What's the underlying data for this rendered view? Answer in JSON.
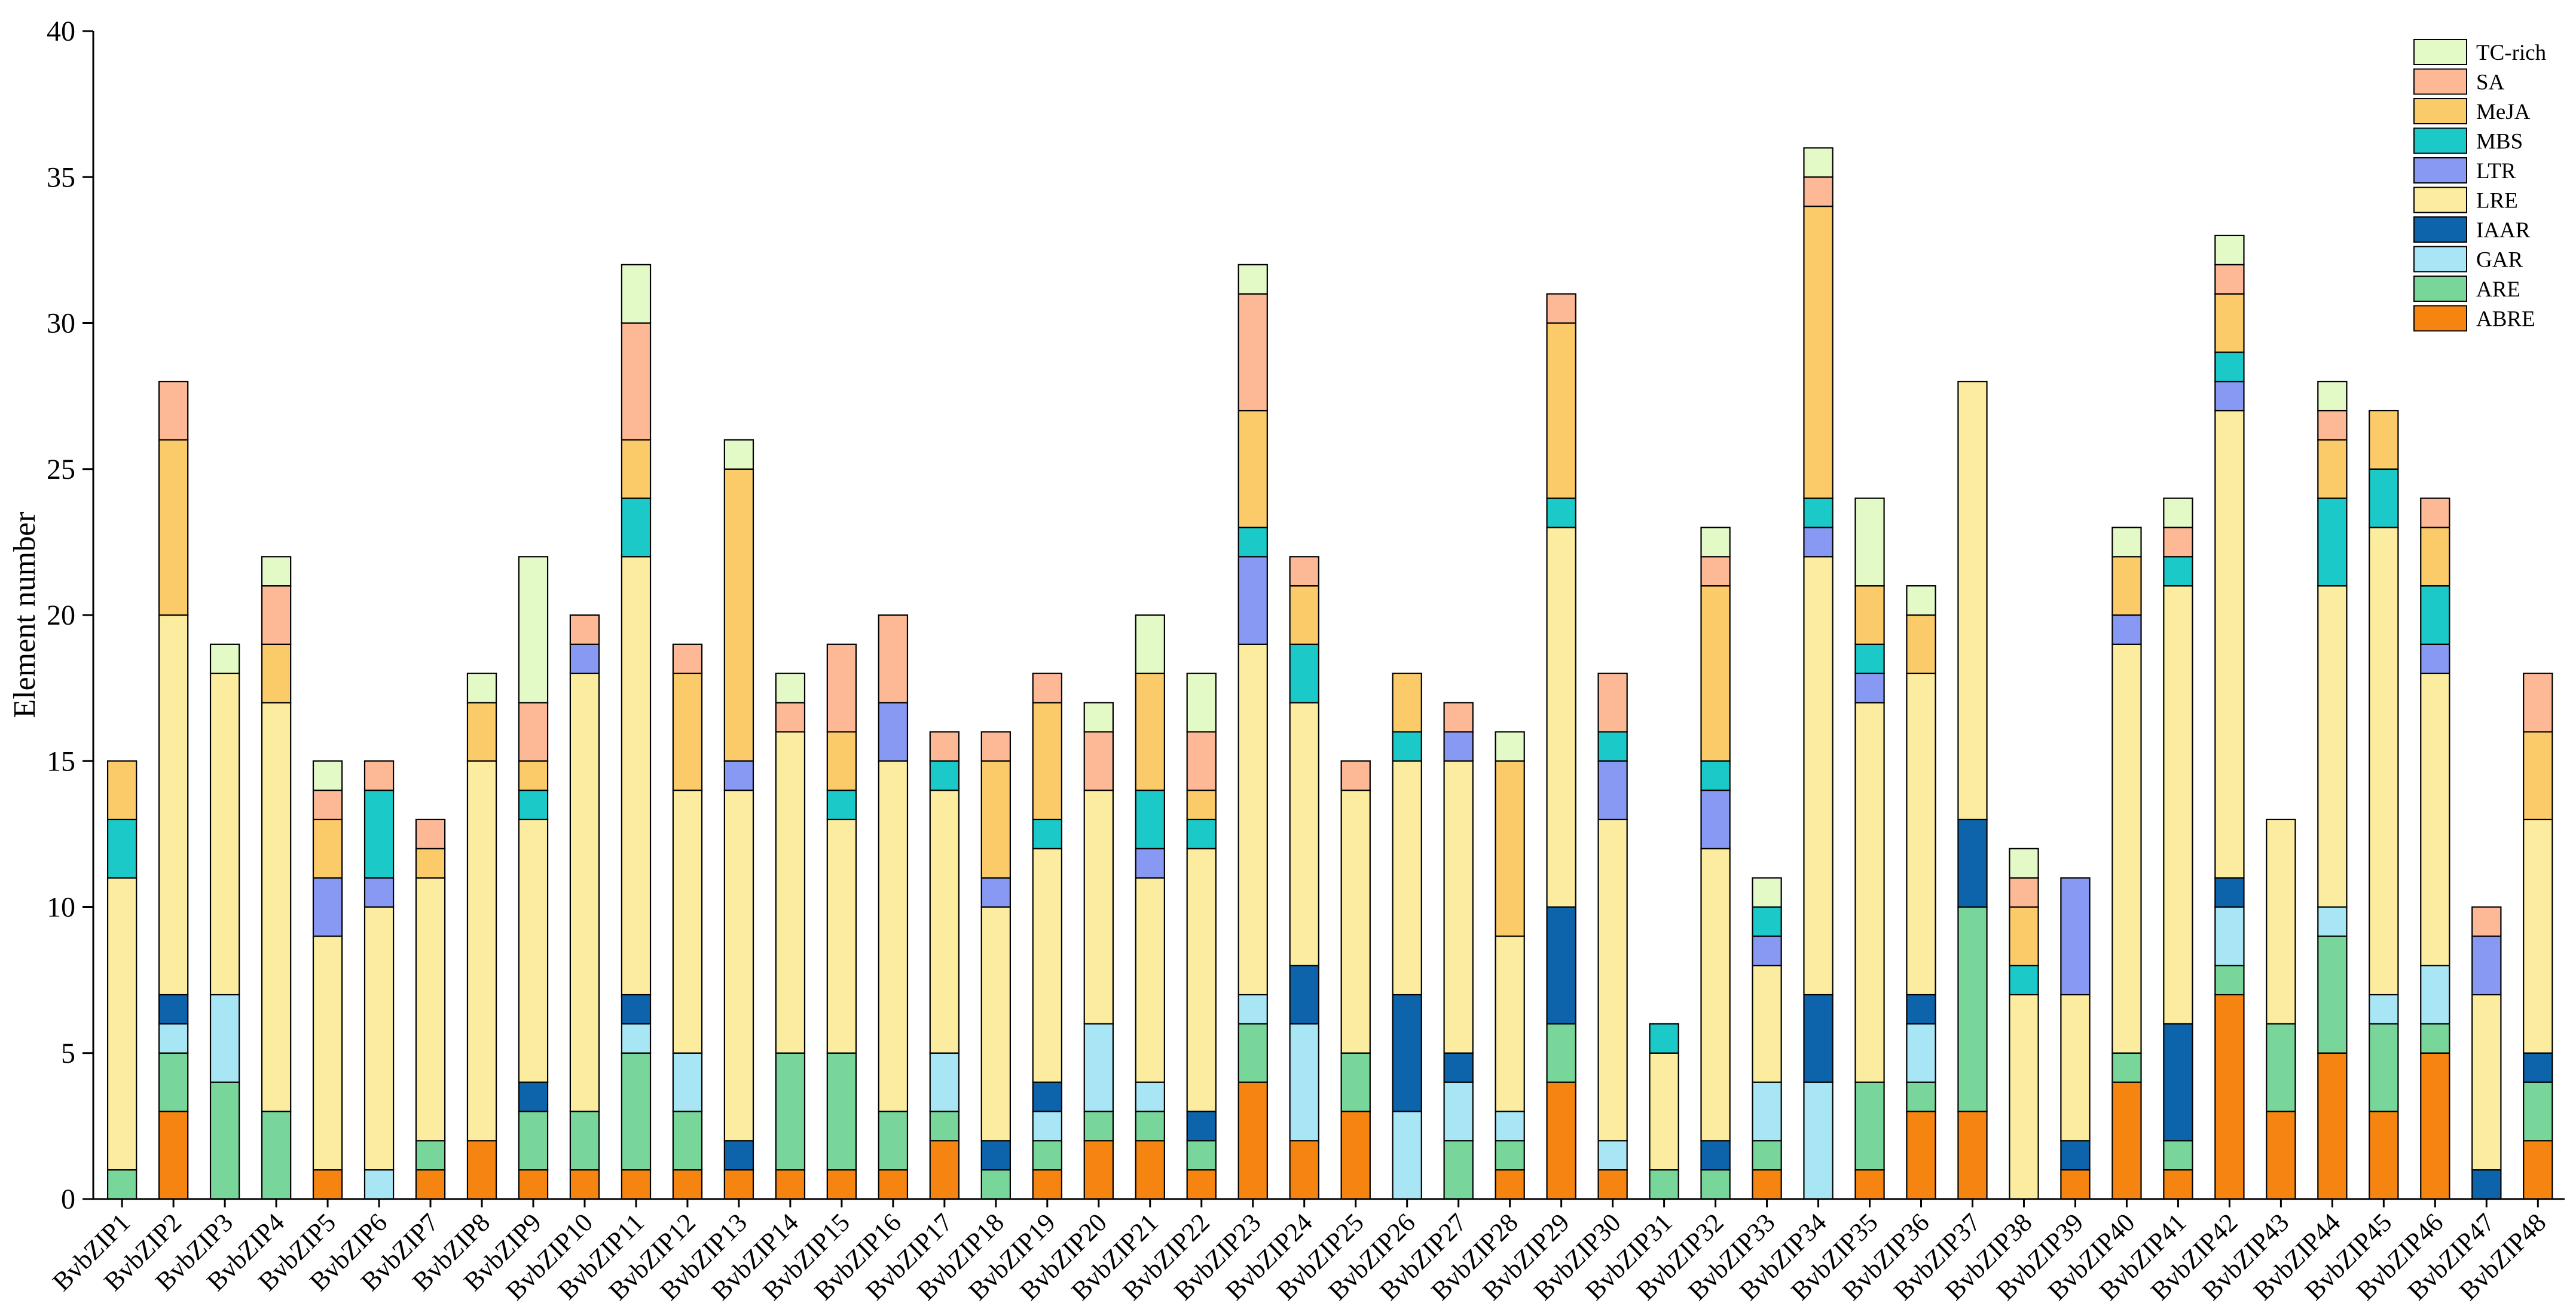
{
  "chart_data": {
    "type": "bar",
    "stacked": true,
    "title": "",
    "xlabel": "",
    "ylabel": "Element number",
    "ylim": [
      0,
      40
    ],
    "yticks": [
      0,
      5,
      10,
      15,
      20,
      25,
      30,
      35,
      40
    ],
    "legend_position": "top-right",
    "categories": [
      "BvbZIP1",
      "BvbZIP2",
      "BvbZIP3",
      "BvbZIP4",
      "BvbZIP5",
      "BvbZIP6",
      "BvbZIP7",
      "BvbZIP8",
      "BvbZIP9",
      "BvbZIP10",
      "BvbZIP11",
      "BvbZIP12",
      "BvbZIP13",
      "BvbZIP14",
      "BvbZIP15",
      "BvbZIP16",
      "BvbZIP17",
      "BvbZIP18",
      "BvbZIP19",
      "BvbZIP20",
      "BvbZIP21",
      "BvbZIP22",
      "BvbZIP23",
      "BvbZIP24",
      "BvbZIP25",
      "BvbZIP26",
      "BvbZIP27",
      "BvbZIP28",
      "BvbZIP29",
      "BvbZIP30",
      "BvbZIP31",
      "BvbZIP32",
      "BvbZIP33",
      "BvbZIP34",
      "BvbZIP35",
      "BvbZIP36",
      "BvbZIP37",
      "BvbZIP38",
      "BvbZIP39",
      "BvbZIP40",
      "BvbZIP41",
      "BvbZIP42",
      "BvbZIP43",
      "BvbZIP44",
      "BvbZIP45",
      "BvbZIP46",
      "BvbZIP47",
      "BvbZIP48"
    ],
    "series": [
      {
        "name": "ABRE",
        "color": "#F68410",
        "values": [
          0,
          3,
          0,
          0,
          1,
          0,
          1,
          2,
          1,
          1,
          1,
          1,
          1,
          1,
          1,
          1,
          2,
          0,
          1,
          2,
          2,
          1,
          4,
          2,
          3,
          0,
          0,
          1,
          4,
          1,
          0,
          0,
          1,
          0,
          1,
          3,
          3,
          0,
          1,
          4,
          1,
          7,
          3,
          5,
          3,
          5,
          0,
          2
        ]
      },
      {
        "name": "ARE",
        "color": "#78D69A",
        "values": [
          1,
          2,
          4,
          3,
          0,
          0,
          1,
          0,
          2,
          2,
          4,
          2,
          0,
          4,
          4,
          2,
          1,
          1,
          1,
          1,
          1,
          1,
          2,
          0,
          2,
          0,
          2,
          1,
          2,
          0,
          1,
          1,
          1,
          0,
          3,
          1,
          7,
          0,
          0,
          1,
          1,
          1,
          3,
          4,
          3,
          1,
          0,
          2
        ]
      },
      {
        "name": "GAR",
        "color": "#A9E6F5",
        "values": [
          0,
          1,
          3,
          0,
          0,
          1,
          0,
          0,
          0,
          0,
          1,
          2,
          0,
          0,
          0,
          0,
          2,
          0,
          1,
          3,
          1,
          0,
          1,
          4,
          0,
          3,
          2,
          1,
          0,
          1,
          0,
          0,
          2,
          4,
          0,
          2,
          0,
          0,
          0,
          0,
          0,
          2,
          0,
          1,
          1,
          2,
          0,
          0
        ]
      },
      {
        "name": "IAAR",
        "color": "#0D64AA",
        "values": [
          0,
          1,
          0,
          0,
          0,
          0,
          0,
          0,
          1,
          0,
          1,
          0,
          1,
          0,
          0,
          0,
          0,
          1,
          1,
          0,
          0,
          1,
          0,
          2,
          0,
          4,
          1,
          0,
          4,
          0,
          0,
          1,
          0,
          3,
          0,
          1,
          3,
          0,
          1,
          0,
          4,
          1,
          0,
          0,
          0,
          0,
          1,
          1
        ]
      },
      {
        "name": "LRE",
        "color": "#FCEC9F",
        "values": [
          10,
          13,
          11,
          14,
          8,
          9,
          9,
          13,
          9,
          15,
          15,
          9,
          12,
          11,
          8,
          12,
          9,
          8,
          8,
          8,
          7,
          9,
          12,
          9,
          9,
          8,
          10,
          6,
          13,
          11,
          4,
          10,
          4,
          15,
          13,
          11,
          15,
          7,
          5,
          14,
          15,
          16,
          7,
          11,
          16,
          10,
          6,
          8
        ]
      },
      {
        "name": "LTR",
        "color": "#8899F3",
        "values": [
          0,
          0,
          0,
          0,
          2,
          1,
          0,
          0,
          0,
          1,
          0,
          0,
          1,
          0,
          0,
          2,
          0,
          1,
          0,
          0,
          1,
          0,
          3,
          0,
          0,
          0,
          1,
          0,
          0,
          2,
          0,
          2,
          1,
          1,
          1,
          0,
          0,
          0,
          4,
          1,
          0,
          1,
          0,
          0,
          0,
          1,
          2,
          0
        ]
      },
      {
        "name": "MBS",
        "color": "#1BC9C9",
        "values": [
          2,
          0,
          0,
          0,
          0,
          3,
          0,
          0,
          1,
          0,
          2,
          0,
          0,
          0,
          1,
          0,
          1,
          0,
          1,
          0,
          2,
          1,
          1,
          2,
          0,
          1,
          0,
          0,
          1,
          1,
          1,
          1,
          1,
          1,
          1,
          0,
          0,
          1,
          0,
          0,
          1,
          1,
          0,
          3,
          2,
          2,
          0,
          0
        ]
      },
      {
        "name": "MeJA",
        "color": "#FBCB6A",
        "values": [
          2,
          6,
          0,
          2,
          2,
          0,
          1,
          2,
          1,
          0,
          2,
          4,
          10,
          0,
          2,
          0,
          0,
          4,
          4,
          0,
          4,
          1,
          4,
          2,
          0,
          2,
          0,
          6,
          6,
          0,
          0,
          6,
          0,
          10,
          2,
          2,
          0,
          2,
          0,
          2,
          0,
          2,
          0,
          2,
          2,
          2,
          0,
          3
        ]
      },
      {
        "name": "SA",
        "color": "#FDB995",
        "values": [
          0,
          2,
          0,
          2,
          1,
          1,
          1,
          0,
          2,
          1,
          4,
          1,
          0,
          1,
          3,
          3,
          1,
          1,
          1,
          2,
          0,
          2,
          4,
          1,
          1,
          0,
          1,
          0,
          1,
          2,
          0,
          1,
          0,
          1,
          0,
          0,
          0,
          1,
          0,
          0,
          1,
          1,
          0,
          1,
          0,
          1,
          1,
          2
        ]
      },
      {
        "name": "TC-rich",
        "color": "#E3FAC7",
        "values": [
          0,
          0,
          1,
          1,
          1,
          0,
          0,
          1,
          5,
          0,
          2,
          0,
          1,
          1,
          0,
          0,
          0,
          0,
          0,
          1,
          2,
          2,
          1,
          0,
          0,
          0,
          0,
          1,
          0,
          0,
          0,
          1,
          1,
          1,
          3,
          1,
          0,
          1,
          0,
          1,
          1,
          1,
          0,
          1,
          0,
          0,
          0,
          0
        ]
      }
    ]
  }
}
